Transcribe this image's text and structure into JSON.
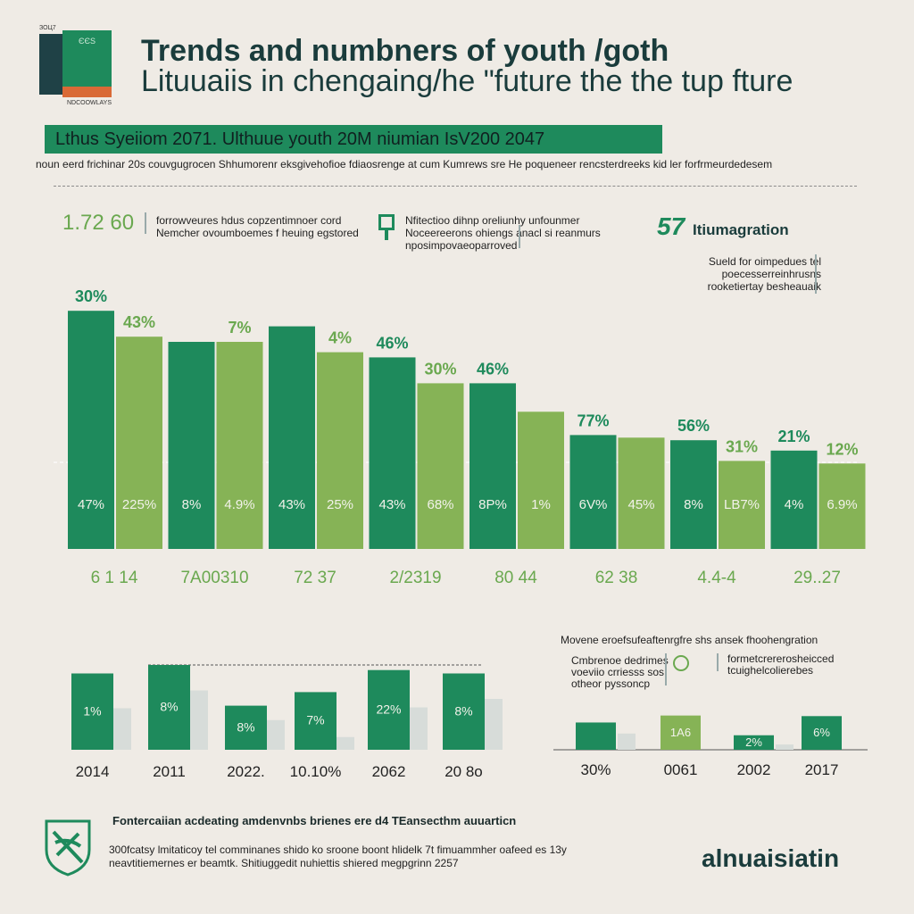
{
  "header": {
    "book_top_label": "ЗОЦ7",
    "book_label": "ЄЄS",
    "book_caption": "NDCOOWLAYS",
    "title_line1": "Trends and numbners of youth /goth",
    "title_line2": "Lituuaiis in chengaing/he \"future the the tup fture",
    "banner": "Lthus Syeiiom 2071. Ulthuue youth 20M niumian IsV200 2047",
    "subtitle": "noun eerd frichinar 20s couvgugrocen Shhumorenr eksgivehofioe fdiaosrenge at cum Kumrews sre He poqueneer rencsterdreeks kid ler forfrmeurdedesem"
  },
  "stats": {
    "left_number": "1.72 60",
    "left_text": "forrowveures hdus copzentimnoer cord Nemcher ovoumboemes f heuing egstored",
    "mid_text": "Nfitectioo dihnp oreliunhy unfounmer Noceereerons ohiengs anacl si reanmurs nposimpovaeoparroved",
    "immigration_number": "57",
    "immigration_title": "Itiumagration",
    "immigration_text": "Sueld for oimpedues tel poecesserreinhrusns rooketiertay besheauaik"
  },
  "chart_data": [
    {
      "type": "bar",
      "title": "",
      "xlabel": "",
      "ylabel": "",
      "ylim": [
        0,
        100
      ],
      "grid": false,
      "legend": "none",
      "colors": [
        "#1e8a5c",
        "#86b356"
      ],
      "categories": [
        "6 1 14",
        "7A00310",
        "72 37",
        "2/2319",
        "80 44",
        "62 38",
        "4.4-4",
        "29..27"
      ],
      "series": [
        {
          "values": [
            92,
            80,
            86,
            74,
            64,
            44,
            42,
            38
          ],
          "top_labels": [
            "30%",
            "",
            "",
            "46%",
            "46%",
            "77%",
            "56%",
            "21%"
          ],
          "inner_labels": [
            "47%",
            "8%",
            "43%",
            "43%",
            "8P%",
            "6V%",
            "8%",
            "4%"
          ]
        },
        {
          "values": [
            82,
            80,
            76,
            64,
            53,
            43,
            34,
            33
          ],
          "top_labels": [
            "43%",
            "7%",
            "4%",
            "30%",
            "",
            "",
            "31%",
            "12%"
          ],
          "inner_labels": [
            "225%",
            "4.9%",
            "25%",
            "68%",
            "1%",
            "45%",
            "LB7%",
            "6.9%"
          ]
        }
      ]
    },
    {
      "type": "bar",
      "title": "",
      "ylim": [
        0,
        100
      ],
      "grid": false,
      "legend": "none",
      "colors": [
        "#1e8a5c",
        "#d7dcd9"
      ],
      "categories": [
        "2014",
        "2011",
        "2022.",
        "10.10%",
        "2062",
        "20 8o"
      ],
      "series": [
        {
          "values": [
            90,
            100,
            52,
            68,
            94,
            90
          ],
          "labels": [
            "1%",
            "8%",
            "8%",
            "7%",
            "22%",
            "8%"
          ]
        },
        {
          "values": [
            49,
            70,
            35,
            15,
            50,
            60
          ]
        }
      ]
    },
    {
      "type": "bar",
      "title": "Movene eroefsufeaftenrgfre shs ansek fhoohengration",
      "ylim": [
        0,
        100
      ],
      "grid": false,
      "legend": "none",
      "colors": [
        "#1e8a5c",
        "#86b356",
        "#d7dcd9"
      ],
      "categories": [
        "30%",
        "0061",
        "2002",
        "2017"
      ],
      "series": [
        {
          "values": [
            47,
            0,
            25,
            58
          ],
          "labels": [
            "",
            "",
            "2%",
            "6%"
          ]
        },
        {
          "values": [
            0,
            59,
            0,
            0
          ],
          "labels": [
            "",
            "1A6",
            "",
            ""
          ]
        },
        {
          "values": [
            28,
            0,
            9,
            0
          ]
        }
      ]
    }
  ],
  "lower": {
    "left_note": "Cmbrenoe dedrimes voeviio crriesss sos otheor pyssoncp",
    "right_note": "formetcrererosheicced tcuighelcolierebes"
  },
  "footer": {
    "title": "Fontercaiian acdeating amdenvnbs brienes ere d4 TEansecthm auuarticn",
    "text": "300fcatsy lmitaticoy tel comminanes shido ko sroone boont hlidelk 7t fimuammher oafeed es 13y neavtitiemernes er beamtk. Shitiuggedit nuhiettis shiered megpgrinn 2257",
    "brand": "alnuaisiatin"
  }
}
